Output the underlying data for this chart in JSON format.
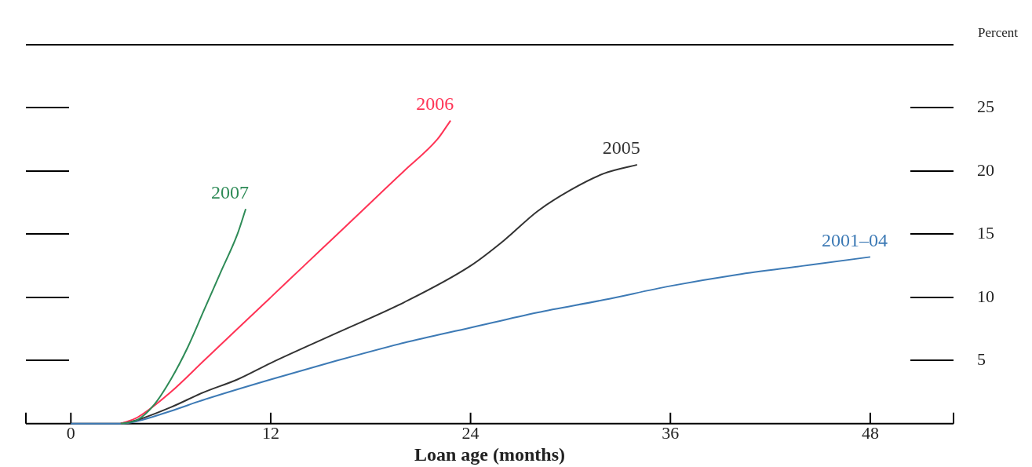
{
  "chart_data": {
    "type": "line",
    "xlabel": "Loan age (months)",
    "ylabel": "Percent",
    "xlim": [
      -2.7,
      53
    ],
    "xticks": [
      0,
      12,
      24,
      36,
      48
    ],
    "ylim": [
      0,
      30
    ],
    "yticks": [
      5,
      10,
      15,
      20,
      25
    ],
    "grid": "y",
    "legend": false,
    "marker": "none",
    "line_style": "solid",
    "series": [
      {
        "name": "2007",
        "color": "#2e8b57",
        "x": [
          3,
          4,
          5,
          6,
          7,
          8,
          9,
          10,
          10.5
        ],
        "values": [
          0,
          0.3,
          1.5,
          3.5,
          6,
          9,
          12,
          15,
          17
        ]
      },
      {
        "name": "2006",
        "color": "#ff3355",
        "x": [
          3,
          4,
          6,
          8,
          10,
          12,
          14,
          16,
          18,
          20,
          22,
          22.8
        ],
        "values": [
          0,
          0.5,
          2.5,
          5,
          7.5,
          10,
          12.5,
          15,
          17.5,
          20,
          22.5,
          24
        ]
      },
      {
        "name": "2005",
        "color": "#333333",
        "x": [
          3,
          4,
          6,
          8,
          10,
          12,
          16,
          20,
          24,
          26,
          28,
          30,
          32,
          34
        ],
        "values": [
          0,
          0.3,
          1.3,
          2.5,
          3.5,
          4.8,
          7.2,
          9.6,
          12.5,
          14.5,
          16.8,
          18.5,
          19.8,
          20.5
        ]
      },
      {
        "name": "2001–04",
        "color": "#3d7ab5",
        "x": [
          0,
          3,
          4,
          6,
          8,
          12,
          16,
          20,
          24,
          28,
          32,
          36,
          40,
          44,
          48
        ],
        "values": [
          0,
          0,
          0.2,
          1,
          1.9,
          3.5,
          5,
          6.4,
          7.6,
          8.8,
          9.8,
          10.9,
          11.8,
          12.5,
          13.2
        ]
      }
    ]
  }
}
